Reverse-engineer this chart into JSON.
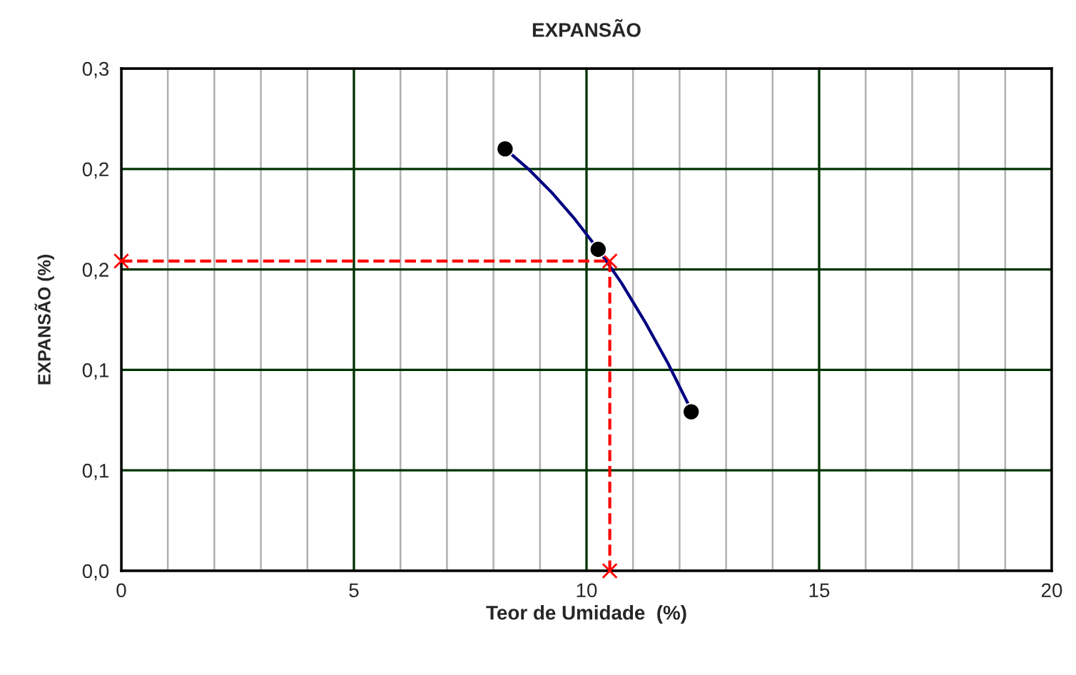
{
  "chart_data": {
    "type": "scatter",
    "title": "EXPANSÃO",
    "xlabel": "Teor de Umidade  (%)",
    "ylabel": "EXPANSÃO (%)",
    "xlim": [
      0,
      20
    ],
    "ylim": [
      0,
      0.3
    ],
    "xticks": [
      0,
      {
        "value": 1,
        "label": null
      },
      {
        "value": 2,
        "label": null
      },
      {
        "value": 3,
        "label": null
      },
      {
        "value": 4,
        "label": null
      },
      5,
      {
        "value": 6,
        "label": null
      },
      {
        "value": 7,
        "label": null
      },
      {
        "value": 8,
        "label": null
      },
      {
        "value": 9,
        "label": null
      },
      10,
      {
        "value": 11,
        "label": null
      },
      {
        "value": 12,
        "label": null
      },
      {
        "value": 13,
        "label": null
      },
      {
        "value": 14,
        "label": null
      },
      15,
      {
        "value": 16,
        "label": null
      },
      {
        "value": 17,
        "label": null
      },
      {
        "value": 18,
        "label": null
      },
      {
        "value": 19,
        "label": null
      },
      20
    ],
    "yticks": [
      {
        "value": 0,
        "label": "0,0"
      },
      {
        "value": 0.06,
        "label": "0,1"
      },
      {
        "value": 0.12,
        "label": "0,1"
      },
      {
        "value": 0.18,
        "label": "0,2"
      },
      {
        "value": 0.24,
        "label": "0,2"
      },
      {
        "value": 0.3,
        "label": "0,3"
      }
    ],
    "grid": true,
    "series": [
      {
        "type": "line",
        "color": "#000080",
        "marker": "none",
        "line_style": "solid",
        "x": [
          8.25,
          8.75,
          9.25,
          9.75,
          10.25,
          10.75,
          11.25,
          11.75,
          12.25
        ],
        "values": [
          0.252,
          0.24,
          0.226,
          0.21,
          0.192,
          0.172,
          0.149,
          0.124,
          0.096
        ]
      },
      {
        "color": "#000000",
        "marker": "circle",
        "x": [
          8.25,
          10.25,
          12.25
        ],
        "values": [
          0.252,
          0.192,
          0.095
        ]
      },
      {
        "type": "line",
        "color": "#ff0000",
        "marker": "cross",
        "line_style": "dashed",
        "x": [
          0,
          10.5,
          10.5
        ],
        "values": [
          0.185,
          0.185,
          0
        ]
      }
    ]
  }
}
